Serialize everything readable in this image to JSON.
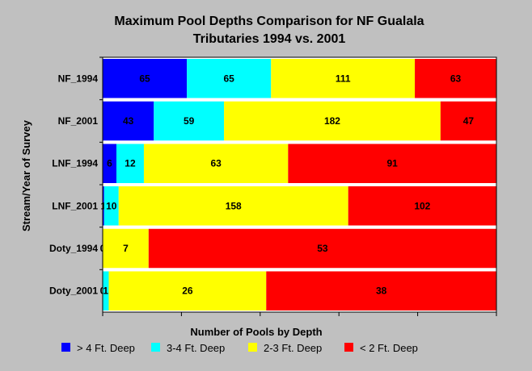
{
  "chart_data": {
    "type": "bar",
    "orientation": "horizontal",
    "stacked": true,
    "normalized": true,
    "title": "Maximum Pool Depths Comparison for NF Gualala Tributaries 1994 vs. 2001",
    "title_lines": [
      "Maximum Pool Depths Comparison for NF Gualala",
      "Tributaries 1994 vs. 2001"
    ],
    "ylabel": "Stream/Year of Survey",
    "xlabel": "Number of Pools by Depth",
    "categories": [
      "NF_1994",
      "NF_2001",
      "LNF_1994",
      "LNF_2001",
      "Doty_1994",
      "Doty_2001"
    ],
    "series": [
      {
        "name": "> 4 Ft. Deep",
        "color": "#0000ff",
        "values": [
          65,
          43,
          6,
          1,
          0,
          0
        ],
        "labels": [
          "65",
          "43",
          "6",
          "1",
          "0",
          "0"
        ]
      },
      {
        "name": "3-4 Ft. Deep",
        "color": "#00ffff",
        "values": [
          65,
          59,
          12,
          10,
          0,
          1
        ],
        "labels": [
          "65",
          "59",
          "12",
          "10",
          "",
          "1"
        ]
      },
      {
        "name": "2-3 Ft. Deep",
        "color": "#ffff00",
        "values": [
          111,
          182,
          63,
          158,
          7,
          26
        ],
        "labels": [
          "111",
          "182",
          "63",
          "158",
          "7",
          "26"
        ]
      },
      {
        "name": "< 2 Ft. Deep",
        "color": "#ff0000",
        "values": [
          63,
          47,
          91,
          102,
          53,
          38
        ],
        "labels": [
          "63",
          "47",
          "91",
          "102",
          "53",
          "38"
        ]
      }
    ],
    "legend_position": "bottom",
    "grid": false
  }
}
